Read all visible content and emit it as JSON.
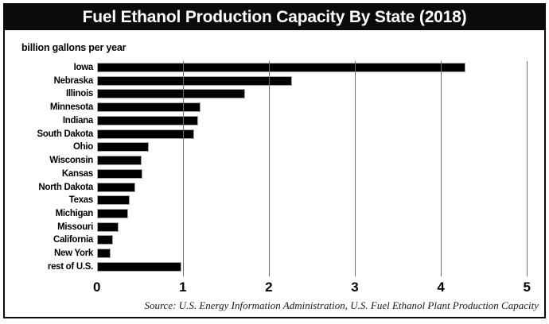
{
  "window": {
    "title": "Fuel Ethanol Production Capacity By State (2018)"
  },
  "colors": {
    "bar_fill": "#000000",
    "bar_outline": "#a8a8a8",
    "gridline": "#6e6e6e",
    "title_bar_bg": "#0b0b0b",
    "title_text": "#ffffff",
    "background": "#ffffff",
    "frame_border": "#0b0b0b"
  },
  "chart_data": {
    "type": "bar",
    "orientation": "horizontal",
    "title": "Fuel Ethanol Production Capacity By State (2018)",
    "xlabel": "billion gallons per year",
    "ylabel": "",
    "categories": [
      "Iowa",
      "Nebraska",
      "Illinois",
      "Minnesota",
      "Indiana",
      "South Dakota",
      "Ohio",
      "Wisconsin",
      "Kansas",
      "North Dakota",
      "Texas",
      "Michigan",
      "Missouri",
      "California",
      "New York",
      "rest of U.S."
    ],
    "values": [
      4.29,
      2.27,
      1.72,
      1.21,
      1.18,
      1.13,
      0.6,
      0.52,
      0.53,
      0.45,
      0.38,
      0.36,
      0.25,
      0.19,
      0.16,
      0.98
    ],
    "xlim": [
      0,
      5
    ],
    "xticks": [
      0,
      1,
      2,
      3,
      4,
      5
    ],
    "grid": "vertical gridlines at ticks 1-5, drawn over bars",
    "legend": "none",
    "source": "Source: U.S. Energy Information Administration, U.S. Fuel Ethanol Plant Production Capacity"
  }
}
